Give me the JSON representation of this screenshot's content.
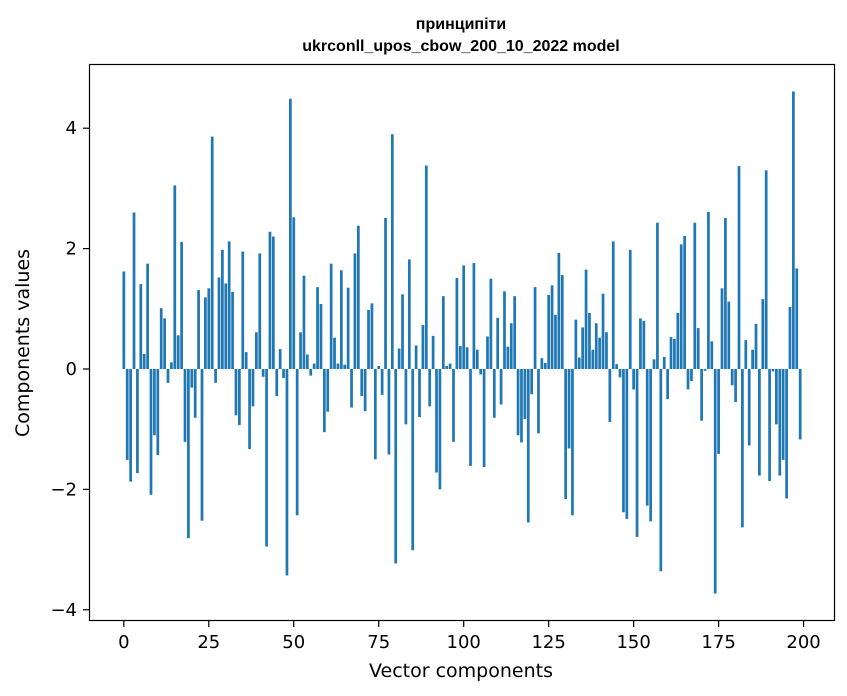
{
  "chart_data": {
    "type": "bar",
    "title_line1": "принципіти",
    "title_line2": "ukrconll_upos_cbow_200_10_2022 model",
    "xlabel": "Vector components",
    "ylabel": "Components values",
    "xlim": [
      -9.95,
      208.95
    ],
    "ylim": [
      -4.17,
      5.05
    ],
    "xticks": [
      0,
      25,
      50,
      75,
      100,
      125,
      150,
      175,
      200
    ],
    "yticks": [
      -4,
      -2,
      0,
      2,
      4
    ],
    "ytick_labels": [
      "−4",
      "−2",
      "0",
      "2",
      "4"
    ],
    "grid": false,
    "bar_color": "#1f77b4",
    "values": [
      1.62,
      -1.51,
      -1.87,
      2.6,
      -1.73,
      1.41,
      0.25,
      1.75,
      -2.09,
      -1.1,
      -1.43,
      1.01,
      0.84,
      -0.23,
      0.11,
      3.05,
      0.56,
      2.11,
      -1.21,
      -2.81,
      -0.31,
      -0.81,
      1.31,
      -2.52,
      1.19,
      1.34,
      3.86,
      -0.23,
      1.52,
      1.98,
      1.42,
      2.12,
      1.28,
      -0.77,
      -0.93,
      1.95,
      0.28,
      -1.33,
      -0.62,
      0.61,
      1.92,
      -0.13,
      -2.95,
      2.28,
      2.2,
      -0.45,
      0.33,
      -0.15,
      -3.43,
      4.49,
      2.52,
      -2.43,
      0.61,
      1.55,
      0.24,
      -0.11,
      0.09,
      1.36,
      1.08,
      -1.05,
      -0.71,
      1.75,
      0.52,
      0.09,
      1.64,
      0.07,
      1.35,
      -0.64,
      1.92,
      2.38,
      -0.45,
      -0.7,
      0.98,
      1.09,
      -1.5,
      0.05,
      -0.43,
      2.51,
      -1.42,
      3.9,
      -3.23,
      0.34,
      1.24,
      -0.92,
      1.82,
      -3.01,
      0.39,
      -0.8,
      0.73,
      3.38,
      -0.62,
      0.55,
      -1.72,
      -2.0,
      1.21,
      0.05,
      0.09,
      -1.21,
      1.51,
      0.38,
      1.72,
      0.36,
      -1.61,
      1.76,
      0.32,
      -0.09,
      -1.63,
      0.54,
      1.5,
      -0.81,
      0.85,
      -0.59,
      1.29,
      0.37,
      0.76,
      1.21,
      -1.1,
      -1.22,
      -0.83,
      -2.55,
      -0.42,
      1.36,
      -1.07,
      0.18,
      0.1,
      1.23,
      1.39,
      0.9,
      1.93,
      1.56,
      -2.16,
      -1.32,
      -2.43,
      0.82,
      0.19,
      0.69,
      1.65,
      0.93,
      0.32,
      0.76,
      0.52,
      1.25,
      0.61,
      -0.88,
      2.12,
      0.08,
      -0.14,
      -2.38,
      -2.49,
      1.98,
      -0.34,
      -2.79,
      0.84,
      0.8,
      -2.27,
      -2.53,
      0.16,
      2.43,
      -3.36,
      0.2,
      -0.5,
      0.53,
      0.5,
      0.93,
      2.07,
      2.21,
      -0.34,
      -0.2,
      2.43,
      0.68,
      -0.86,
      -0.03,
      2.61,
      0.46,
      -3.73,
      -1.41,
      1.34,
      2.51,
      1.12,
      -0.27,
      -0.55,
      3.37,
      -2.63,
      0.48,
      -1.27,
      0.32,
      0.75,
      -1.77,
      1.16,
      3.3,
      -1.86,
      -0.04,
      -0.92,
      -1.77,
      -1.51,
      -2.15,
      1.03,
      4.61,
      1.67,
      -1.17
    ]
  }
}
